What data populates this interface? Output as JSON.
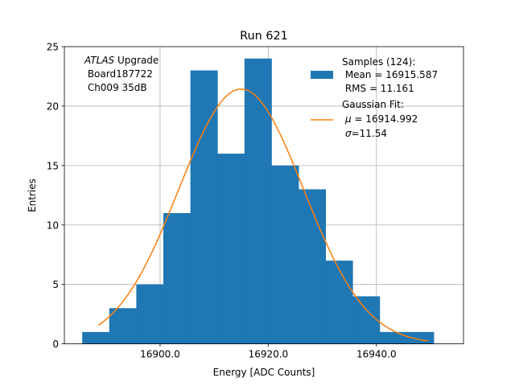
{
  "chart_data": {
    "type": "bar",
    "title": "Run 621",
    "xlabel": "Energy [ADC Counts]",
    "ylabel": "Entries",
    "xlim": [
      16882.3,
      16956.1
    ],
    "ylim": [
      0,
      25
    ],
    "xticks": [
      16900,
      16920,
      16940
    ],
    "xtick_labels": [
      "16900.0",
      "16920.0",
      "16940.0"
    ],
    "yticks": [
      0,
      5,
      10,
      15,
      20,
      25
    ],
    "ytick_labels": [
      "0",
      "5",
      "10",
      "15",
      "20",
      "25"
    ],
    "grid": true,
    "colors": {
      "histogram": "#1f77b4",
      "fit": "#ff7f0e",
      "grid": "#b0b0b0"
    },
    "annotation": {
      "line1_italic": "ATLAS",
      "line1_rest": " Upgrade",
      "line2": " Board187722",
      "line3": " Ch009 35dB"
    },
    "legend": {
      "placement": "top-right",
      "histogram_lines": [
        "Samples (124):",
        " Mean = 16915.587",
        " RMS = 11.161"
      ],
      "fit_line1": "Gaussian Fit:",
      "fit_mu_symbol": "μ",
      "fit_mu_text": " = 16914.992",
      "fit_sigma_symbol": "σ",
      "fit_sigma_text": "=11.54"
    },
    "histogram": {
      "bin_edges": [
        16885.6,
        16890.6,
        16895.6,
        16900.6,
        16905.6,
        16910.6,
        16915.6,
        16920.6,
        16925.6,
        16930.6,
        16935.6,
        16940.6,
        16945.6,
        16950.6
      ],
      "counts": [
        1,
        3,
        5,
        11,
        23,
        16,
        24,
        15,
        13,
        7,
        4,
        1,
        1
      ],
      "total": 124,
      "mean": 16915.587,
      "rms": 11.161
    },
    "fit": {
      "mu": 16914.992,
      "sigma": 11.54,
      "x_range": [
        16888.6,
        16949.6
      ]
    }
  }
}
